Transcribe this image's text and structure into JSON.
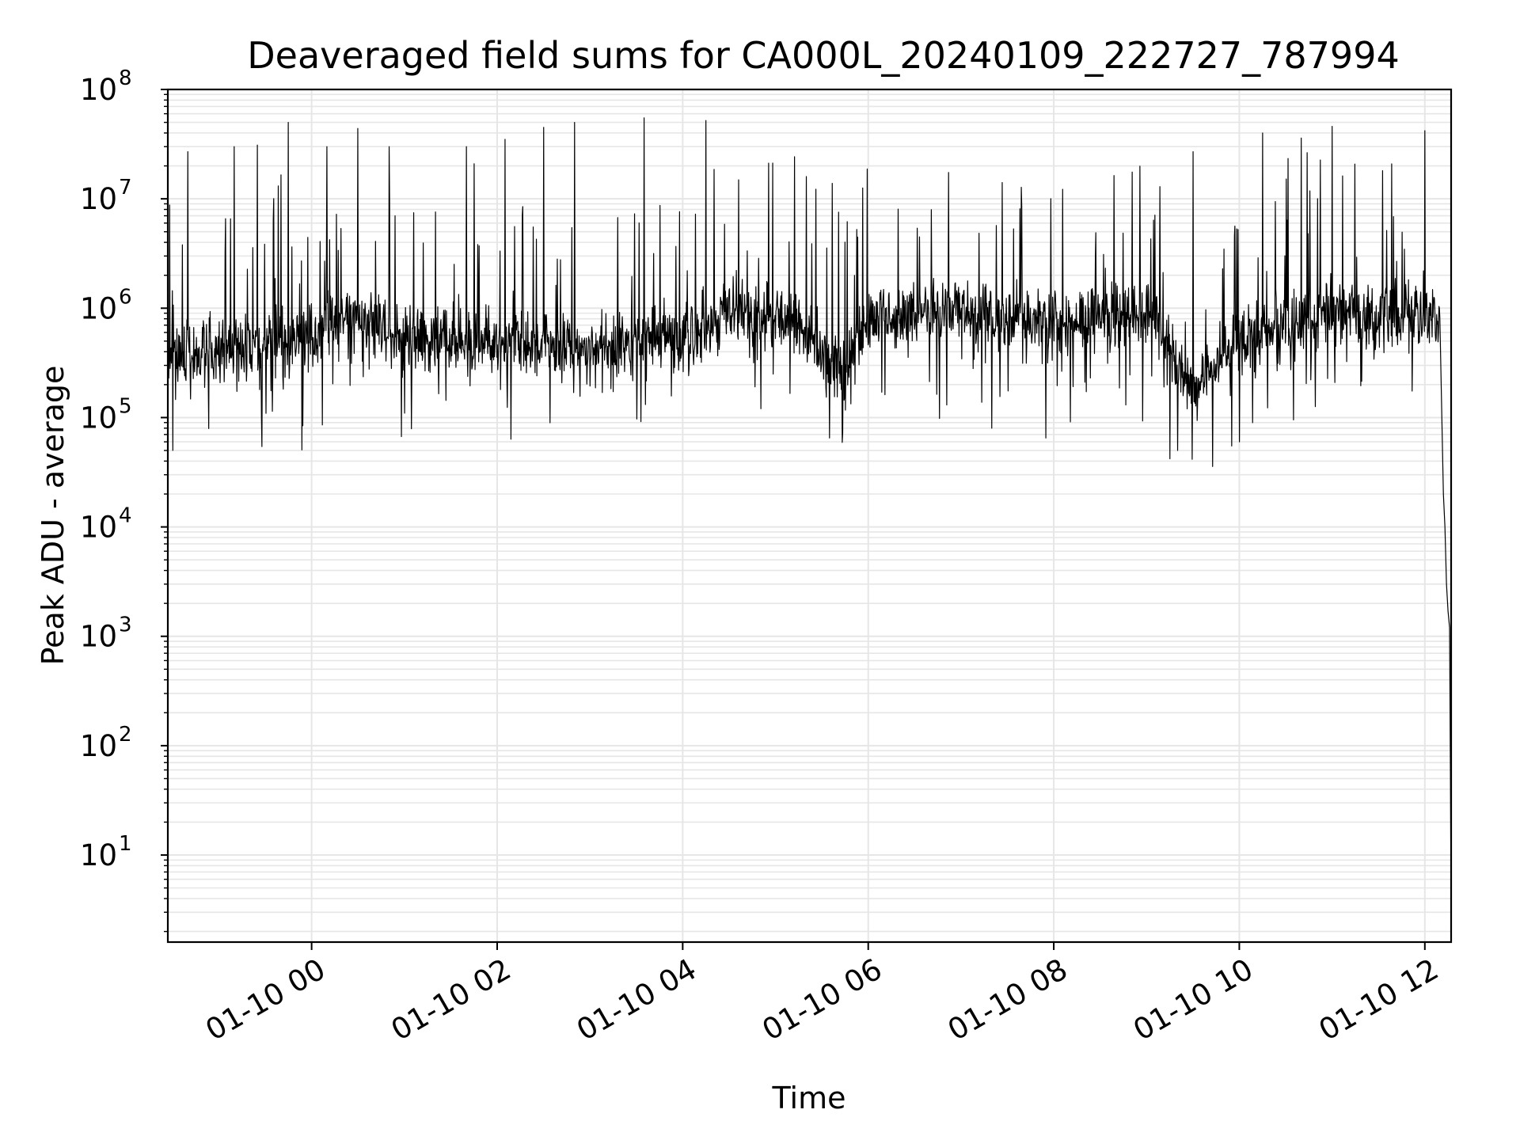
{
  "chart_data": {
    "type": "line",
    "title": "Deaveraged field sums for CA000L_20240109_222727_787994",
    "xlabel": "Time",
    "ylabel": "Peak ADU - average",
    "yscale": "log",
    "ylim": [
      1.6,
      100000000
    ],
    "xlim": [
      "2024-01-09 22:27",
      "2024-01-10 12:17"
    ],
    "grid": true,
    "line_color": "#000000",
    "grid_color": "#e6e6e6",
    "x_tick_labels": [
      "01-10 00",
      "01-10 02",
      "01-10 04",
      "01-10 06",
      "01-10 08",
      "01-10 10",
      "01-10 12"
    ],
    "x_ticks": [
      "2024-01-10 00:00",
      "2024-01-10 02:00",
      "2024-01-10 04:00",
      "2024-01-10 06:00",
      "2024-01-10 08:00",
      "2024-01-10 10:00",
      "2024-01-10 12:00"
    ],
    "y_tick_labels": [
      {
        "base": "10",
        "exp": "1",
        "value": 10
      },
      {
        "base": "10",
        "exp": "2",
        "value": 100
      },
      {
        "base": "10",
        "exp": "3",
        "value": 1000
      },
      {
        "base": "10",
        "exp": "4",
        "value": 10000
      },
      {
        "base": "10",
        "exp": "5",
        "value": 100000
      },
      {
        "base": "10",
        "exp": "6",
        "value": 1000000
      },
      {
        "base": "10",
        "exp": "7",
        "value": 10000000
      },
      {
        "base": "10",
        "exp": "8",
        "value": 100000000
      }
    ],
    "baseline": [
      {
        "x": "2024-01-09 22:27",
        "y": 350000
      },
      {
        "x": "2024-01-09 23:00",
        "y": 420000
      },
      {
        "x": "2024-01-09 23:30",
        "y": 450000
      },
      {
        "x": "2024-01-10 00:00",
        "y": 550000
      },
      {
        "x": "2024-01-10 00:30",
        "y": 850000
      },
      {
        "x": "2024-01-10 01:00",
        "y": 520000
      },
      {
        "x": "2024-01-10 02:00",
        "y": 500000
      },
      {
        "x": "2024-01-10 03:00",
        "y": 420000
      },
      {
        "x": "2024-01-10 04:00",
        "y": 550000
      },
      {
        "x": "2024-01-10 04:45",
        "y": 1000000
      },
      {
        "x": "2024-01-10 05:15",
        "y": 700000
      },
      {
        "x": "2024-01-10 05:45",
        "y": 250000
      },
      {
        "x": "2024-01-10 06:00",
        "y": 800000
      },
      {
        "x": "2024-01-10 07:00",
        "y": 900000
      },
      {
        "x": "2024-01-10 08:00",
        "y": 700000
      },
      {
        "x": "2024-01-10 09:00",
        "y": 900000
      },
      {
        "x": "2024-01-10 09:30",
        "y": 180000
      },
      {
        "x": "2024-01-10 10:00",
        "y": 500000
      },
      {
        "x": "2024-01-10 11:00",
        "y": 900000
      },
      {
        "x": "2024-01-10 12:10",
        "y": 800000
      }
    ],
    "spikes": [
      {
        "x": "2024-01-09 22:40",
        "y": 27000000
      },
      {
        "x": "2024-01-09 23:10",
        "y": 30000000
      },
      {
        "x": "2024-01-09 23:25",
        "y": 31000000
      },
      {
        "x": "2024-01-09 23:45",
        "y": 50000000
      },
      {
        "x": "2024-01-10 00:10",
        "y": 30000000
      },
      {
        "x": "2024-01-10 00:30",
        "y": 44000000
      },
      {
        "x": "2024-01-10 00:50",
        "y": 30000000
      },
      {
        "x": "2024-01-10 01:40",
        "y": 30000000
      },
      {
        "x": "2024-01-10 02:05",
        "y": 35000000
      },
      {
        "x": "2024-01-10 02:30",
        "y": 45000000
      },
      {
        "x": "2024-01-10 02:50",
        "y": 50000000
      },
      {
        "x": "2024-01-10 03:35",
        "y": 55000000
      },
      {
        "x": "2024-01-10 04:15",
        "y": 52000000
      },
      {
        "x": "2024-01-10 05:20",
        "y": 16000000
      },
      {
        "x": "2024-01-10 09:30",
        "y": 27000000
      },
      {
        "x": "2024-01-10 10:15",
        "y": 40000000
      },
      {
        "x": "2024-01-10 10:40",
        "y": 36000000
      },
      {
        "x": "2024-01-10 11:00",
        "y": 46000000
      },
      {
        "x": "2024-01-10 12:00",
        "y": 42000000
      }
    ],
    "dips": [
      {
        "x": "2024-01-10 05:35",
        "y": 65000
      },
      {
        "x": "2024-01-10 07:20",
        "y": 80000
      },
      {
        "x": "2024-01-10 07:55",
        "y": 65000
      },
      {
        "x": "2024-01-10 09:15",
        "y": 42000
      },
      {
        "x": "2024-01-10 09:20",
        "y": 50000
      },
      {
        "x": "2024-01-10 09:55",
        "y": 55000
      },
      {
        "x": "2024-01-10 10:00",
        "y": 60000
      }
    ],
    "tail": [
      {
        "x": "2024-01-10 12:10",
        "y": 800000
      },
      {
        "x": "2024-01-10 12:11",
        "y": 100000
      },
      {
        "x": "2024-01-10 12:12",
        "y": 20000
      },
      {
        "x": "2024-01-10 12:13",
        "y": 10000
      },
      {
        "x": "2024-01-10 12:14",
        "y": 3000
      },
      {
        "x": "2024-01-10 12:15",
        "y": 1700
      },
      {
        "x": "2024-01-10 12:16",
        "y": 1200
      },
      {
        "x": "2024-01-10 12:17",
        "y": 4
      }
    ]
  }
}
